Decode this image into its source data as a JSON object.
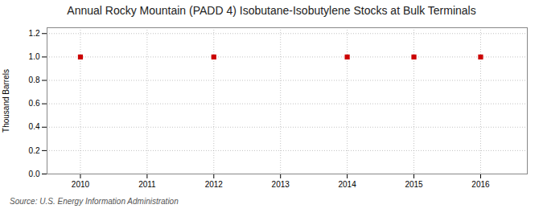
{
  "chart_data": {
    "type": "scatter",
    "title": "Annual Rocky Mountain (PADD 4) Isobutane-Isobutylene Stocks at Bulk Terminals",
    "ylabel": "Thousand Barrels",
    "x": [
      2010,
      2012,
      2014,
      2015,
      2016
    ],
    "values": [
      1.0,
      1.0,
      1.0,
      1.0,
      1.0
    ],
    "color": "#cc0000",
    "marker": "square",
    "xlim": [
      2009.5,
      2016.7
    ],
    "ylim": [
      0.0,
      1.25
    ],
    "xticks": [
      2010,
      2011,
      2012,
      2013,
      2014,
      2015,
      2016
    ],
    "yticks": [
      {
        "value": 0.0,
        "label": "0.0"
      },
      0.2,
      0.4,
      0.6,
      0.8,
      {
        "value": 1.0,
        "label": "1.0"
      },
      1.2
    ],
    "grid": true,
    "source": "Source: U.S. Energy Information Administration"
  }
}
